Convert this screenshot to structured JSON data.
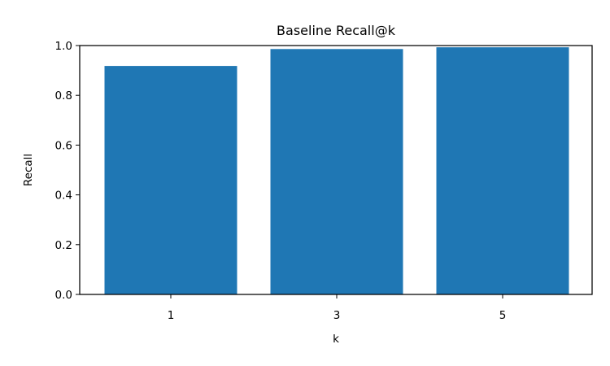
{
  "chart_data": {
    "type": "bar",
    "title": "Baseline Recall@k",
    "xlabel": "k",
    "ylabel": "Recall",
    "categories": [
      "1",
      "3",
      "5"
    ],
    "values": [
      0.918,
      0.986,
      0.993
    ],
    "ylim": [
      0,
      1.0
    ],
    "yticks": [
      "0.0",
      "0.2",
      "0.4",
      "0.6",
      "0.8",
      "1.0"
    ],
    "grid": false,
    "bar_color": "#1f77b4"
  }
}
